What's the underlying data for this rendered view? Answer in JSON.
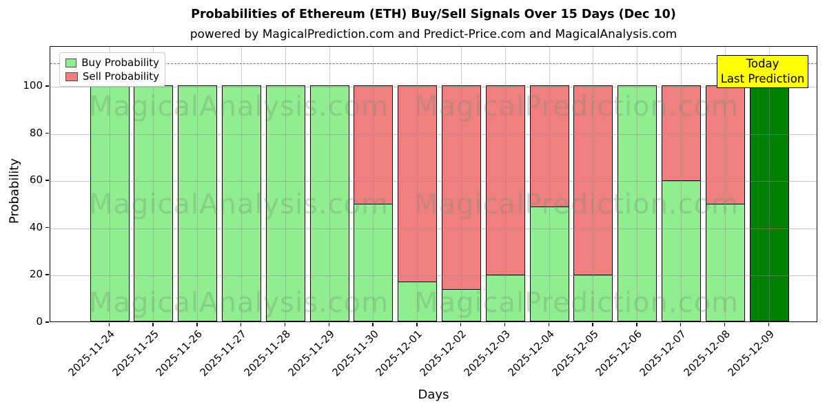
{
  "title": "Probabilities of Ethereum (ETH) Buy/Sell Signals Over 15 Days (Dec 10)",
  "subtitle": "powered by MagicalPrediction.com and Predict-Price.com and MagicalAnalysis.com",
  "legend": {
    "buy_label": "Buy Probability",
    "sell_label": "Sell Probability"
  },
  "annotation_box": {
    "line1": "Today",
    "line2": "Last Prediction"
  },
  "axes": {
    "xlabel": "Days",
    "ylabel": "Probability",
    "yticks": [
      0,
      20,
      40,
      60,
      80,
      100
    ],
    "dashed_hline": 110,
    "grid": true
  },
  "watermarks": {
    "left_text": "MagicalAnalysis.com",
    "right_text": "MagicalPrediction.com",
    "rows": 3
  },
  "colors": {
    "buy": "#90ee90",
    "sell": "#f08080",
    "today_bar": "#008000",
    "bar_edge": "#000000",
    "annotation_bg": "#ffff00",
    "grid": "#8c8c8c",
    "dashed_line": "#6e6e6e",
    "watermark": "rgba(110,140,110,0.30)"
  },
  "chart_data": {
    "type": "bar",
    "stacked": true,
    "title": "Probabilities of Ethereum (ETH) Buy/Sell Signals Over 15 Days (Dec 10)",
    "xlabel": "Days",
    "ylabel": "Probability",
    "ylim": [
      0,
      117
    ],
    "grid": true,
    "legend_position": "upper left",
    "categories": [
      "2025-11-24",
      "2025-11-25",
      "2025-11-26",
      "2025-11-27",
      "2025-11-28",
      "2025-11-29",
      "2025-11-30",
      "2025-12-01",
      "2025-12-02",
      "2025-12-03",
      "2025-12-04",
      "2025-12-05",
      "2025-12-06",
      "2025-12-07",
      "2025-12-08",
      "2025-12-09"
    ],
    "series": [
      {
        "name": "Buy Probability",
        "color": "#90ee90",
        "values": [
          100,
          100,
          100,
          100,
          100,
          100,
          50,
          17,
          14,
          20,
          49,
          20,
          100,
          60,
          50,
          100
        ]
      },
      {
        "name": "Sell Probability",
        "color": "#f08080",
        "values": [
          0,
          0,
          0,
          0,
          0,
          0,
          50,
          83,
          86,
          80,
          51,
          80,
          0,
          40,
          50,
          0
        ]
      }
    ],
    "today_index": 15,
    "today_color": "#008000"
  }
}
